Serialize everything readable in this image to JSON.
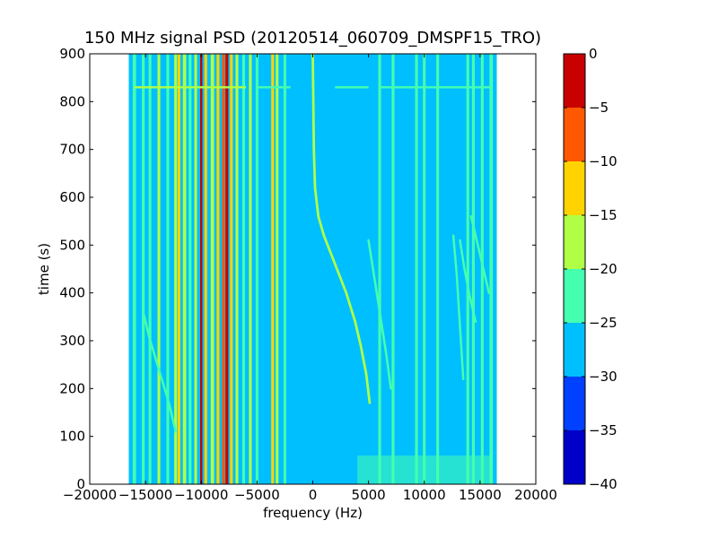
{
  "chart_data": {
    "type": "heatmap",
    "title": "150 MHz signal PSD (20120514_060709_DMSPF15_TRO)",
    "xlabel": "frequency (Hz)",
    "ylabel": "time (s)",
    "xlim": [
      -20000,
      20000
    ],
    "ylim": [
      0,
      900
    ],
    "x_ticks": [
      -20000,
      -15000,
      -10000,
      -5000,
      0,
      5000,
      10000,
      15000,
      20000
    ],
    "y_ticks": [
      0,
      100,
      200,
      300,
      400,
      500,
      600,
      700,
      800,
      900
    ],
    "data_x_range": [
      -16500,
      16500
    ],
    "data_y_range": [
      0,
      900
    ],
    "background_level": -27.5,
    "colorbar": {
      "ticks": [
        0,
        -5,
        -10,
        -15,
        -20,
        -25,
        -30,
        -35,
        -40
      ],
      "range": [
        -40,
        0
      ],
      "levels": [
        {
          "from": -40,
          "to": -35,
          "color": "#0000c8"
        },
        {
          "from": -35,
          "to": -30,
          "color": "#0040ff"
        },
        {
          "from": -30,
          "to": -25,
          "color": "#00bfff"
        },
        {
          "from": -25,
          "to": -20,
          "color": "#44ffaf"
        },
        {
          "from": -20,
          "to": -15,
          "color": "#b0ff46"
        },
        {
          "from": -15,
          "to": -10,
          "color": "#ffd300"
        },
        {
          "from": -10,
          "to": -5,
          "color": "#ff5800"
        },
        {
          "from": -5,
          "to": 0,
          "color": "#c80000"
        }
      ]
    },
    "vertical_lines": [
      {
        "f": -16000,
        "level": -22.5,
        "width_hz": 300
      },
      {
        "f": -15200,
        "level": -22.5,
        "width_hz": 250
      },
      {
        "f": -14600,
        "level": -22.5,
        "width_hz": 250
      },
      {
        "f": -13800,
        "level": -17.5,
        "width_hz": 250
      },
      {
        "f": -13000,
        "level": -22.5,
        "width_hz": 250
      },
      {
        "f": -12300,
        "level": -17.5,
        "width_hz": 250
      },
      {
        "f": -12000,
        "level": -12.5,
        "width_hz": 250
      },
      {
        "f": -11500,
        "level": -17.5,
        "width_hz": 300
      },
      {
        "f": -11000,
        "level": -22.5,
        "width_hz": 250
      },
      {
        "f": -10500,
        "level": -17.5,
        "width_hz": 250
      },
      {
        "f": -10000,
        "level": -2.5,
        "width_hz": 200
      },
      {
        "f": -9600,
        "level": -12.5,
        "width_hz": 250
      },
      {
        "f": -9000,
        "level": -17.5,
        "width_hz": 300
      },
      {
        "f": -8500,
        "level": -12.5,
        "width_hz": 250
      },
      {
        "f": -8000,
        "level": -7.5,
        "width_hz": 250
      },
      {
        "f": -7700,
        "level": -2.5,
        "width_hz": 250
      },
      {
        "f": -7300,
        "level": -12.5,
        "width_hz": 250
      },
      {
        "f": -6800,
        "level": -17.5,
        "width_hz": 250
      },
      {
        "f": -6200,
        "level": -22.5,
        "width_hz": 250
      },
      {
        "f": -5600,
        "level": -17.5,
        "width_hz": 250
      },
      {
        "f": -5000,
        "level": -22.5,
        "width_hz": 250
      },
      {
        "f": -3600,
        "level": -12.5,
        "width_hz": 250
      },
      {
        "f": -3200,
        "level": -17.5,
        "width_hz": 250
      },
      {
        "f": -2500,
        "level": -22.5,
        "width_hz": 250
      },
      {
        "f": 6000,
        "level": -22.5,
        "width_hz": 250
      },
      {
        "f": 7200,
        "level": -22.5,
        "width_hz": 250
      },
      {
        "f": 9300,
        "level": -22.5,
        "width_hz": 250
      },
      {
        "f": 10000,
        "level": -22.5,
        "width_hz": 250
      },
      {
        "f": 11200,
        "level": -22.5,
        "width_hz": 250
      },
      {
        "f": 13900,
        "level": -22.5,
        "width_hz": 250
      },
      {
        "f": 14400,
        "level": -22.5,
        "width_hz": 250
      },
      {
        "f": 15200,
        "level": -22.5,
        "width_hz": 250
      },
      {
        "f": 16000,
        "level": -22.5,
        "width_hz": 300
      }
    ],
    "curves": [
      {
        "level": -17.5,
        "width_hz": 220,
        "points": [
          [
            0,
            900
          ],
          [
            100,
            700
          ],
          [
            200,
            620
          ],
          [
            500,
            560
          ],
          [
            1000,
            520
          ],
          [
            2000,
            460
          ],
          [
            3000,
            400
          ],
          [
            3800,
            340
          ],
          [
            4300,
            290
          ],
          [
            4800,
            230
          ],
          [
            5100,
            170
          ]
        ]
      },
      {
        "level": -22.5,
        "width_hz": 200,
        "points": [
          [
            -15200,
            360
          ],
          [
            -14700,
            310
          ],
          [
            -13800,
            240
          ],
          [
            -12900,
            170
          ],
          [
            -12300,
            110
          ]
        ]
      },
      {
        "level": -22.5,
        "width_hz": 200,
        "points": [
          [
            5000,
            510
          ],
          [
            5400,
            450
          ],
          [
            6000,
            360
          ],
          [
            6600,
            270
          ],
          [
            7000,
            200
          ]
        ]
      },
      {
        "level": -22.5,
        "width_hz": 200,
        "points": [
          [
            13200,
            510
          ],
          [
            13600,
            450
          ],
          [
            14100,
            390
          ],
          [
            14600,
            340
          ]
        ]
      },
      {
        "level": -22.5,
        "width_hz": 200,
        "points": [
          [
            12600,
            520
          ],
          [
            12900,
            440
          ],
          [
            13200,
            330
          ],
          [
            13500,
            220
          ]
        ]
      },
      {
        "level": -22.5,
        "width_hz": 200,
        "points": [
          [
            14200,
            560
          ],
          [
            15000,
            480
          ],
          [
            15800,
            400
          ]
        ]
      }
    ],
    "horizontal_features": [
      {
        "t": 830,
        "f_from": -16000,
        "f_to": -6000,
        "level": -17.5
      },
      {
        "t": 830,
        "f_from": -5000,
        "f_to": -2000,
        "level": -22.5
      },
      {
        "t": 830,
        "f_from": 2000,
        "f_to": 5000,
        "level": -22.5
      },
      {
        "t": 830,
        "f_from": 6000,
        "f_to": 16000,
        "level": -22.5
      }
    ],
    "noise_band": {
      "t_from": 0,
      "t_to": 60,
      "f_from": 4000,
      "f_to": 16000,
      "level": -22.5
    }
  }
}
